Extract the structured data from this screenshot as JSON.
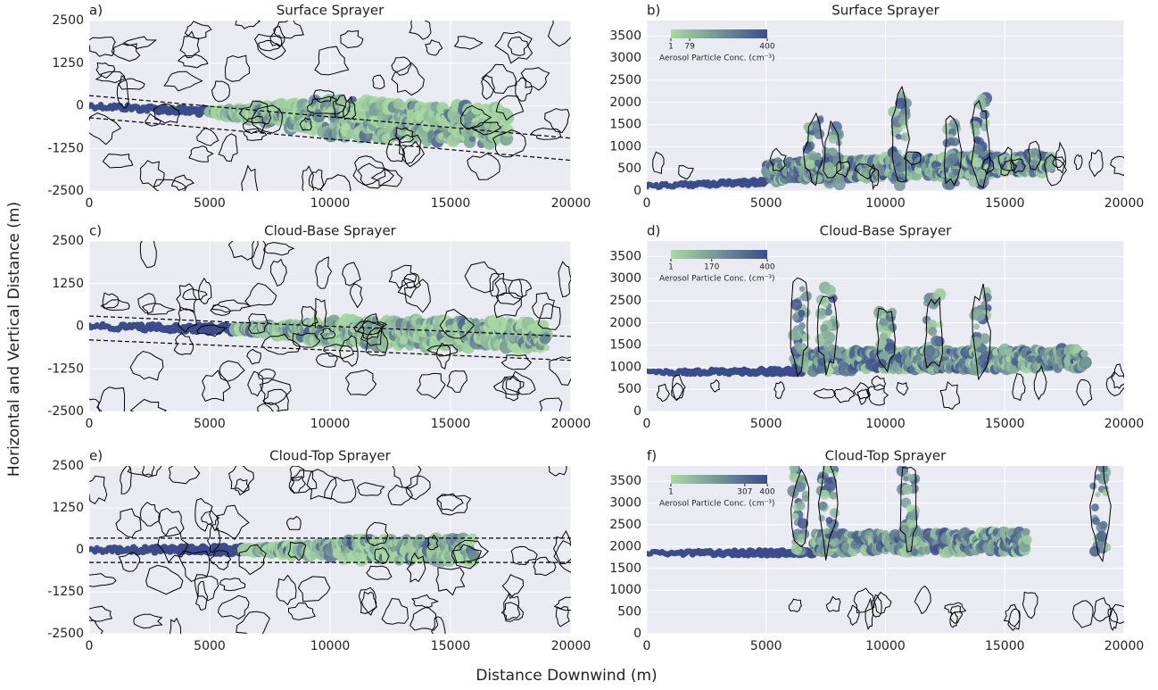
{
  "xlabel": "Distance Downwind (m)",
  "ylabel": "Horizontal and Vertical Distance (m)",
  "chart_data": [
    {
      "type": "heatmap",
      "panel_label": "a)",
      "title": "Surface Sprayer",
      "xlim": [
        0,
        20000
      ],
      "xticks": [
        0,
        5000,
        10000,
        15000,
        20000
      ],
      "ylim": [
        -2500,
        2500
      ],
      "yticks": [
        -2500,
        -1250,
        0,
        1250,
        2500
      ],
      "grid": true
    },
    {
      "type": "heatmap",
      "panel_label": "b)",
      "title": "Surface Sprayer",
      "xlim": [
        0,
        20000
      ],
      "xticks": [
        0,
        5000,
        10000,
        15000,
        20000
      ],
      "ylim": [
        0,
        3850
      ],
      "yticks": [
        0,
        500,
        1000,
        1500,
        2000,
        2500,
        3000,
        3500
      ],
      "grid": true,
      "colorbar": {
        "label": "Aerosol Particle Conc. (cm⁻³)",
        "lim": [
          1,
          400
        ],
        "ticks": [
          1,
          79,
          400
        ],
        "colors": [
          "#a9dba1",
          "#3b4c8c"
        ]
      }
    },
    {
      "type": "heatmap",
      "panel_label": "c)",
      "title": "Cloud-Base Sprayer",
      "xlim": [
        0,
        20000
      ],
      "xticks": [
        0,
        5000,
        10000,
        15000,
        20000
      ],
      "ylim": [
        -2500,
        2500
      ],
      "yticks": [
        -2500,
        -1250,
        0,
        1250,
        2500
      ],
      "grid": true
    },
    {
      "type": "heatmap",
      "panel_label": "d)",
      "title": "Cloud-Base Sprayer",
      "xlim": [
        0,
        20000
      ],
      "xticks": [
        0,
        5000,
        10000,
        15000,
        20000
      ],
      "ylim": [
        0,
        3850
      ],
      "yticks": [
        0,
        500,
        1000,
        1500,
        2000,
        2500,
        3000,
        3500
      ],
      "grid": true,
      "colorbar": {
        "label": "Aerosol Particle Conc. (cm⁻³)",
        "lim": [
          1,
          400
        ],
        "ticks": [
          1,
          170,
          400
        ],
        "colors": [
          "#a9dba1",
          "#3b4c8c"
        ]
      }
    },
    {
      "type": "heatmap",
      "panel_label": "e)",
      "title": "Cloud-Top Sprayer",
      "xlim": [
        0,
        20000
      ],
      "xticks": [
        0,
        5000,
        10000,
        15000,
        20000
      ],
      "ylim": [
        -2500,
        2500
      ],
      "yticks": [
        -2500,
        -1250,
        0,
        1250,
        2500
      ],
      "grid": true
    },
    {
      "type": "heatmap",
      "panel_label": "f)",
      "title": "Cloud-Top Sprayer",
      "xlim": [
        0,
        20000
      ],
      "xticks": [
        0,
        5000,
        10000,
        15000,
        20000
      ],
      "ylim": [
        0,
        3850
      ],
      "yticks": [
        0,
        500,
        1000,
        1500,
        2000,
        2500,
        3000,
        3500
      ],
      "grid": true,
      "colorbar": {
        "label": "Aerosol Particle Conc. (cm⁻³)",
        "lim": [
          1,
          400
        ],
        "ticks": [
          1,
          307,
          400
        ],
        "colors": [
          "#a9dba1",
          "#3b4c8c"
        ]
      }
    }
  ]
}
